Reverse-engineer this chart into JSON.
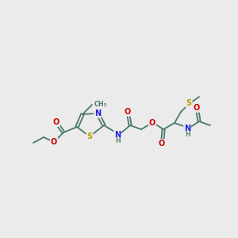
{
  "bg_color": "#ebebeb",
  "bond_color": "#4a7a6a",
  "N_color": "#2020dd",
  "O_color": "#cc0000",
  "S_color": "#b8a000",
  "H_color": "#5a8a7a",
  "lw": 1.3,
  "fs": 7.0,
  "fs_small": 5.8,
  "figsize": [
    3.0,
    3.0
  ],
  "dpi": 100,
  "xlim": [
    0,
    300
  ],
  "ylim": [
    0,
    300
  ]
}
